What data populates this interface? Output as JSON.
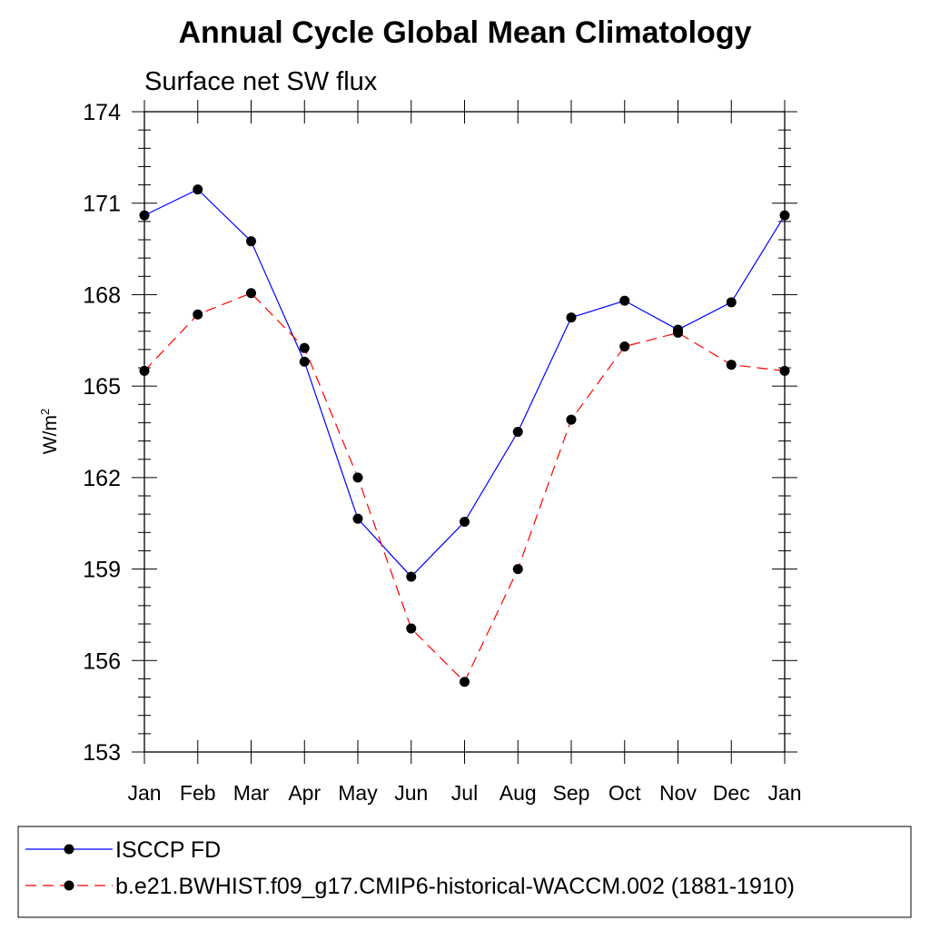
{
  "chart_data": {
    "type": "line",
    "title": "Annual Cycle Global Mean Climatology",
    "subtitle": "Surface net SW flux",
    "ylabel": "W/m",
    "ylabel_sup": "2",
    "xlabel": "",
    "categories": [
      "Jan",
      "Feb",
      "Mar",
      "Apr",
      "May",
      "Jun",
      "Jul",
      "Aug",
      "Sep",
      "Oct",
      "Nov",
      "Dec",
      "Jan"
    ],
    "ylim": [
      153,
      174
    ],
    "yticks": [
      153,
      156,
      159,
      162,
      165,
      168,
      171,
      174
    ],
    "grid": false,
    "legend_position": "bottom",
    "series": [
      {
        "name": "ISCCP FD",
        "color": "#0000ff",
        "dash": "solid",
        "values": [
          170.6,
          171.45,
          169.75,
          165.8,
          160.65,
          158.75,
          160.55,
          163.5,
          167.25,
          167.8,
          166.85,
          167.75,
          170.6
        ]
      },
      {
        "name": "b.e21.BWHIST.f09_g17.CMIP6-historical-WACCM.002 (1881-1910)",
        "color": "#ff0000",
        "dash": "dashed",
        "values": [
          165.5,
          167.35,
          168.05,
          166.25,
          162.0,
          157.05,
          155.3,
          159.0,
          163.9,
          166.3,
          166.75,
          165.7,
          165.5
        ]
      }
    ]
  }
}
